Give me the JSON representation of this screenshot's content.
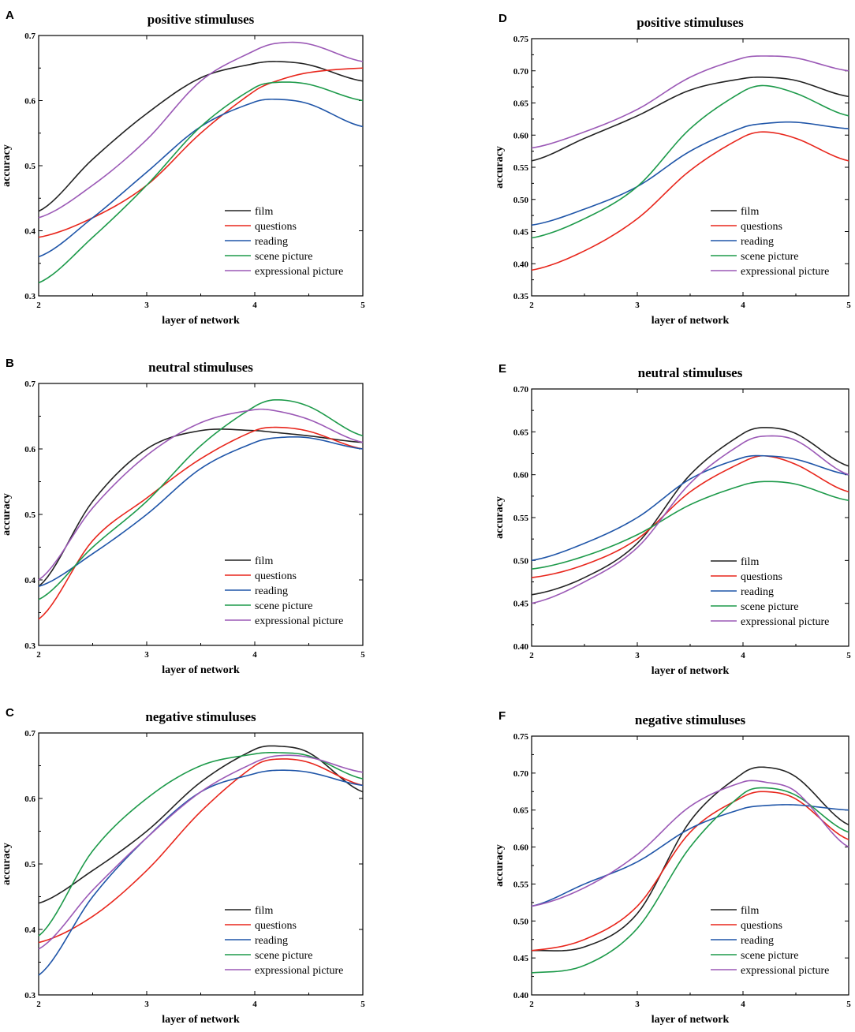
{
  "colors": {
    "film": "#222222",
    "questions": "#e8261c",
    "reading": "#1f55a8",
    "scene picture": "#1d9a4a",
    "expressional picture": "#9b59b6"
  },
  "chart_data": [
    {
      "type": "line",
      "panel": "A",
      "title": "positive stimuluses",
      "xlabel": "layer of network",
      "ylabel": "accuracy",
      "xlim": [
        2,
        5
      ],
      "ylim": [
        0.3,
        0.7
      ],
      "xticks": [
        2,
        3,
        4,
        5
      ],
      "yticks": [
        0.3,
        0.4,
        0.5,
        0.6,
        0.7
      ],
      "x": [
        2,
        2.5,
        3,
        3.5,
        4,
        4.2,
        4.5,
        5
      ],
      "legend": {
        "position": "bottom-right"
      },
      "series": [
        {
          "name": "film",
          "values": [
            0.43,
            0.51,
            0.58,
            0.635,
            0.657,
            0.66,
            0.655,
            0.63
          ]
        },
        {
          "name": "questions",
          "values": [
            0.39,
            0.42,
            0.47,
            0.55,
            0.615,
            0.63,
            0.643,
            0.65
          ]
        },
        {
          "name": "reading",
          "values": [
            0.36,
            0.42,
            0.49,
            0.56,
            0.598,
            0.602,
            0.595,
            0.56
          ]
        },
        {
          "name": "scene picture",
          "values": [
            0.32,
            0.39,
            0.47,
            0.56,
            0.62,
            0.628,
            0.625,
            0.6
          ]
        },
        {
          "name": "expressional picture",
          "values": [
            0.42,
            0.47,
            0.54,
            0.63,
            0.677,
            0.688,
            0.687,
            0.66
          ]
        }
      ]
    },
    {
      "type": "line",
      "panel": "B",
      "title": "neutral stimuluses",
      "xlabel": "layer of network",
      "ylabel": "accuracy",
      "xlim": [
        2,
        5
      ],
      "ylim": [
        0.3,
        0.7
      ],
      "xticks": [
        2,
        3,
        4,
        5
      ],
      "yticks": [
        0.3,
        0.4,
        0.5,
        0.6,
        0.7
      ],
      "x": [
        2,
        2.5,
        3,
        3.5,
        4,
        4.2,
        4.5,
        5
      ],
      "legend": {
        "position": "bottom-right"
      },
      "series": [
        {
          "name": "film",
          "values": [
            0.39,
            0.52,
            0.6,
            0.628,
            0.628,
            0.625,
            0.62,
            0.61
          ]
        },
        {
          "name": "questions",
          "values": [
            0.34,
            0.46,
            0.525,
            0.585,
            0.628,
            0.633,
            0.627,
            0.6
          ]
        },
        {
          "name": "reading",
          "values": [
            0.39,
            0.44,
            0.5,
            0.57,
            0.61,
            0.617,
            0.617,
            0.6
          ]
        },
        {
          "name": "scene picture",
          "values": [
            0.37,
            0.45,
            0.52,
            0.605,
            0.665,
            0.675,
            0.665,
            0.62
          ]
        },
        {
          "name": "expressional picture",
          "values": [
            0.4,
            0.51,
            0.59,
            0.64,
            0.66,
            0.658,
            0.645,
            0.61
          ]
        }
      ]
    },
    {
      "type": "line",
      "panel": "C",
      "title": "negative stimuluses",
      "xlabel": "layer of network",
      "ylabel": "accuracy",
      "xlim": [
        2,
        5
      ],
      "ylim": [
        0.3,
        0.7
      ],
      "xticks": [
        2,
        3,
        4,
        5
      ],
      "yticks": [
        0.3,
        0.4,
        0.5,
        0.6,
        0.7
      ],
      "x": [
        2,
        2.5,
        3,
        3.5,
        4,
        4.2,
        4.5,
        5
      ],
      "legend": {
        "position": "bottom-right"
      },
      "series": [
        {
          "name": "film",
          "values": [
            0.44,
            0.49,
            0.55,
            0.625,
            0.675,
            0.68,
            0.67,
            0.61
          ]
        },
        {
          "name": "questions",
          "values": [
            0.38,
            0.42,
            0.49,
            0.58,
            0.65,
            0.66,
            0.655,
            0.62
          ]
        },
        {
          "name": "reading",
          "values": [
            0.33,
            0.45,
            0.54,
            0.61,
            0.638,
            0.643,
            0.64,
            0.62
          ]
        },
        {
          "name": "scene picture",
          "values": [
            0.39,
            0.52,
            0.6,
            0.65,
            0.668,
            0.67,
            0.665,
            0.63
          ]
        },
        {
          "name": "expressional picture",
          "values": [
            0.37,
            0.46,
            0.54,
            0.61,
            0.655,
            0.665,
            0.663,
            0.64
          ]
        }
      ]
    },
    {
      "type": "line",
      "panel": "D",
      "title": "positive stimuluses",
      "xlabel": "layer of network",
      "ylabel": "accuracy",
      "xlim": [
        2,
        5
      ],
      "ylim": [
        0.35,
        0.75
      ],
      "xticks": [
        2,
        3,
        4,
        5
      ],
      "yticks": [
        0.35,
        0.4,
        0.45,
        0.5,
        0.55,
        0.6,
        0.65,
        0.7,
        0.75
      ],
      "x": [
        2,
        2.5,
        3,
        3.5,
        4,
        4.2,
        4.5,
        5
      ],
      "legend": {
        "position": "bottom-right"
      },
      "series": [
        {
          "name": "film",
          "values": [
            0.56,
            0.595,
            0.63,
            0.67,
            0.688,
            0.69,
            0.685,
            0.66
          ]
        },
        {
          "name": "questions",
          "values": [
            0.39,
            0.42,
            0.47,
            0.545,
            0.597,
            0.605,
            0.595,
            0.56
          ]
        },
        {
          "name": "reading",
          "values": [
            0.46,
            0.485,
            0.52,
            0.575,
            0.612,
            0.618,
            0.62,
            0.61
          ]
        },
        {
          "name": "scene picture",
          "values": [
            0.44,
            0.47,
            0.52,
            0.61,
            0.668,
            0.677,
            0.665,
            0.63
          ]
        },
        {
          "name": "expressional picture",
          "values": [
            0.58,
            0.605,
            0.64,
            0.69,
            0.72,
            0.723,
            0.72,
            0.7
          ]
        }
      ]
    },
    {
      "type": "line",
      "panel": "E",
      "title": "neutral stimuluses",
      "xlabel": "layer of network",
      "ylabel": "accuracy",
      "xlim": [
        2,
        5
      ],
      "ylim": [
        0.4,
        0.7
      ],
      "xticks": [
        2,
        3,
        4,
        5
      ],
      "yticks": [
        0.4,
        0.45,
        0.5,
        0.55,
        0.6,
        0.65,
        0.7
      ],
      "x": [
        2,
        2.5,
        3,
        3.5,
        4,
        4.2,
        4.5,
        5
      ],
      "legend": {
        "position": "bottom-right"
      },
      "series": [
        {
          "name": "film",
          "values": [
            0.46,
            0.48,
            0.52,
            0.6,
            0.648,
            0.655,
            0.648,
            0.61
          ]
        },
        {
          "name": "questions",
          "values": [
            0.48,
            0.495,
            0.525,
            0.58,
            0.615,
            0.622,
            0.612,
            0.58
          ]
        },
        {
          "name": "reading",
          "values": [
            0.5,
            0.52,
            0.55,
            0.595,
            0.62,
            0.622,
            0.618,
            0.6
          ]
        },
        {
          "name": "scene picture",
          "values": [
            0.49,
            0.505,
            0.53,
            0.565,
            0.588,
            0.592,
            0.589,
            0.57
          ]
        },
        {
          "name": "expressional picture",
          "values": [
            0.45,
            0.475,
            0.515,
            0.59,
            0.637,
            0.645,
            0.64,
            0.6
          ]
        }
      ]
    },
    {
      "type": "line",
      "panel": "F",
      "title": "negative stimuluses",
      "xlabel": "layer of network",
      "ylabel": "accuracy",
      "xlim": [
        2,
        5
      ],
      "ylim": [
        0.4,
        0.75
      ],
      "xticks": [
        2,
        3,
        4,
        5
      ],
      "yticks": [
        0.4,
        0.45,
        0.5,
        0.55,
        0.6,
        0.65,
        0.7,
        0.75
      ],
      "x": [
        2,
        2.5,
        3,
        3.5,
        4,
        4.2,
        4.5,
        5
      ],
      "legend": {
        "position": "bottom-right"
      },
      "series": [
        {
          "name": "film",
          "values": [
            0.46,
            0.465,
            0.51,
            0.635,
            0.7,
            0.708,
            0.695,
            0.63
          ]
        },
        {
          "name": "questions",
          "values": [
            0.46,
            0.475,
            0.52,
            0.62,
            0.668,
            0.675,
            0.665,
            0.61
          ]
        },
        {
          "name": "reading",
          "values": [
            0.52,
            0.55,
            0.58,
            0.625,
            0.652,
            0.656,
            0.657,
            0.65
          ]
        },
        {
          "name": "scene picture",
          "values": [
            0.43,
            0.44,
            0.49,
            0.6,
            0.672,
            0.68,
            0.67,
            0.62
          ]
        },
        {
          "name": "expressional picture",
          "values": [
            0.52,
            0.545,
            0.59,
            0.655,
            0.688,
            0.688,
            0.675,
            0.6
          ]
        }
      ]
    }
  ]
}
